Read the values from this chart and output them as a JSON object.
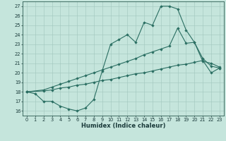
{
  "xlabel": "Humidex (Indice chaleur)",
  "bg_color": "#c5e5dc",
  "line_color": "#2a6e62",
  "grid_color": "#a0c5bc",
  "xlim": [
    -0.5,
    23.5
  ],
  "ylim": [
    15.5,
    27.5
  ],
  "xticks": [
    0,
    1,
    2,
    3,
    4,
    5,
    6,
    7,
    8,
    9,
    10,
    11,
    12,
    13,
    14,
    15,
    16,
    17,
    18,
    19,
    20,
    21,
    22,
    23
  ],
  "yticks": [
    16,
    17,
    18,
    19,
    20,
    21,
    22,
    23,
    24,
    25,
    26,
    27
  ],
  "line1_x": [
    0,
    1,
    2,
    3,
    4,
    5,
    6,
    7,
    8,
    9,
    10,
    11,
    12,
    13,
    14,
    15,
    16,
    17,
    18,
    19,
    20,
    21,
    22,
    23
  ],
  "line1_y": [
    18.0,
    17.8,
    17.0,
    17.0,
    16.5,
    16.2,
    16.0,
    16.3,
    17.2,
    20.2,
    23.0,
    23.5,
    24.0,
    23.2,
    25.3,
    25.0,
    27.0,
    27.0,
    26.7,
    24.5,
    23.2,
    21.5,
    20.7,
    20.5
  ],
  "line2_x": [
    0,
    2,
    3,
    4,
    5,
    6,
    7,
    8,
    9,
    10,
    11,
    12,
    13,
    14,
    15,
    16,
    17,
    18,
    19,
    20,
    21,
    22,
    23
  ],
  "line2_y": [
    18.0,
    18.2,
    18.5,
    18.8,
    19.1,
    19.4,
    19.7,
    20.0,
    20.3,
    20.6,
    20.9,
    21.2,
    21.5,
    21.9,
    22.2,
    22.5,
    22.8,
    24.7,
    23.1,
    23.2,
    21.2,
    21.0,
    20.6
  ],
  "line3_x": [
    0,
    2,
    3,
    4,
    5,
    6,
    7,
    8,
    9,
    10,
    11,
    12,
    13,
    14,
    15,
    16,
    17,
    18,
    19,
    20,
    21,
    22,
    23
  ],
  "line3_y": [
    18.0,
    18.1,
    18.2,
    18.4,
    18.5,
    18.7,
    18.8,
    19.0,
    19.2,
    19.3,
    19.5,
    19.7,
    19.9,
    20.0,
    20.2,
    20.4,
    20.6,
    20.8,
    20.9,
    21.1,
    21.3,
    20.0,
    20.5
  ]
}
